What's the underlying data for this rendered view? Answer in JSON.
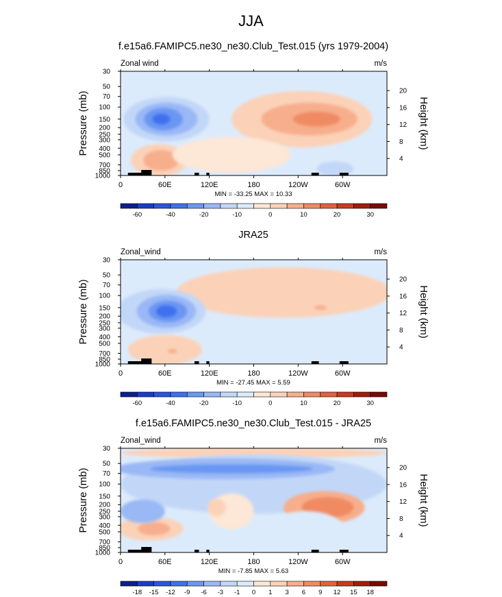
{
  "main_title": "JJA",
  "colors": {
    "abs_scale": [
      "#0c1f8f",
      "#1a3bcc",
      "#2b55e0",
      "#3f70ee",
      "#6b97f2",
      "#9ab8f5",
      "#c2d7f8",
      "#dcebfb",
      "#fde7d6",
      "#fbd2b8",
      "#f7ae8c",
      "#f08a64",
      "#e3613e",
      "#c93a1f",
      "#a31c0c",
      "#7a0a04"
    ],
    "diff_scale": [
      "#0c1f8f",
      "#1a3bcc",
      "#2b55e0",
      "#3f70ee",
      "#6b97f2",
      "#9ab8f5",
      "#c2d7f8",
      "#dcebfb",
      "#fde7d6",
      "#fbd2b8",
      "#f7ae8c",
      "#f08a64",
      "#e3613e",
      "#c93a1f",
      "#a31c0c",
      "#7a0a04"
    ]
  },
  "chart_data": [
    {
      "type": "heatmap",
      "title": "f.e15a6.FAMIPC5.ne30_ne30.Club_Test.015 (yrs 1979-2004)",
      "left_label": "Zonal wind",
      "right_label": "m/s",
      "ylabel": "Pressure (mb)",
      "ylabel_right": "Height (km)",
      "x_ticks": [
        "0",
        "60E",
        "120E",
        "180",
        "120W",
        "60W"
      ],
      "y_ticks": [
        "30",
        "50",
        "70",
        "100",
        "150",
        "200",
        "250",
        "300",
        "400",
        "500",
        "700",
        "850",
        "1000"
      ],
      "y_right_ticks": [
        "20",
        "16",
        "12",
        "8",
        "4"
      ],
      "min_max": "MIN = -33.25  MAX =  10.33",
      "levels": [
        "-60",
        "-40",
        "-20",
        "-10",
        "0",
        "10",
        "20",
        "30"
      ],
      "color_scale": "abs_scale"
    },
    {
      "type": "heatmap",
      "title": "JRA25",
      "left_label": "Zonal_wind",
      "right_label": "m/s",
      "ylabel": "Pressure (mb)",
      "ylabel_right": "Height (km)",
      "x_ticks": [
        "0",
        "60E",
        "120E",
        "180",
        "120W",
        "60W"
      ],
      "y_ticks": [
        "30",
        "50",
        "70",
        "100",
        "150",
        "200",
        "250",
        "300",
        "400",
        "500",
        "700",
        "850",
        "1000"
      ],
      "y_right_ticks": [
        "20",
        "16",
        "12",
        "8",
        "4"
      ],
      "min_max": "MIN = -27.45  MAX =  5.59",
      "levels": [
        "-60",
        "-40",
        "-20",
        "-10",
        "0",
        "10",
        "20",
        "30"
      ],
      "color_scale": "abs_scale"
    },
    {
      "type": "heatmap",
      "title": "f.e15a6.FAMIPC5.ne30_ne30.Club_Test.015 - JRA25",
      "left_label": "Zonal_wind",
      "right_label": "m/s",
      "ylabel": "Pressure (mb)",
      "ylabel_right": "Height (km)",
      "x_ticks": [
        "0",
        "60E",
        "120E",
        "180",
        "120W",
        "60W"
      ],
      "y_ticks": [
        "30",
        "50",
        "70",
        "100",
        "150",
        "200",
        "250",
        "300",
        "400",
        "500",
        "700",
        "850",
        "1000"
      ],
      "y_right_ticks": [
        "20",
        "16",
        "12",
        "8",
        "4"
      ],
      "min_max": "MIN = -7.85  MAX =  5.63",
      "levels": [
        "-18",
        "-15",
        "-12",
        "-9",
        "-6",
        "-3",
        "-1",
        "0",
        "1",
        "3",
        "6",
        "9",
        "12",
        "15",
        "18"
      ],
      "color_scale": "diff_scale"
    }
  ]
}
